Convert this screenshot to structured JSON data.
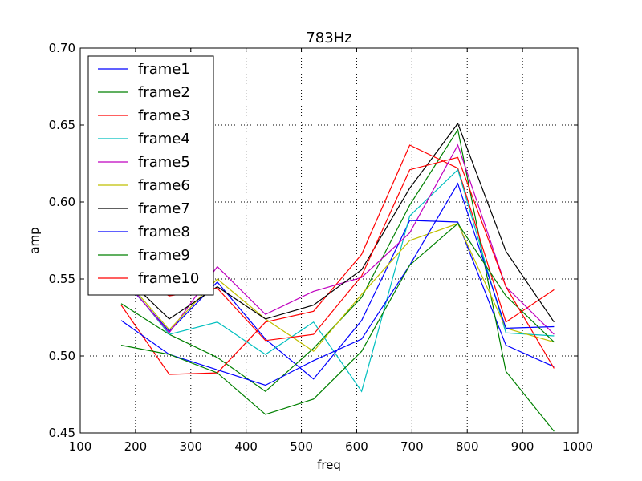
{
  "chart_data": {
    "type": "line",
    "title": "783Hz",
    "xlabel": "freq",
    "ylabel": "amp",
    "xlim": [
      100,
      1000
    ],
    "ylim": [
      0.45,
      0.7
    ],
    "x_ticks": [
      "100",
      "200",
      "300",
      "400",
      "500",
      "600",
      "700",
      "800",
      "900",
      "1000"
    ],
    "y_ticks": [
      "0.45",
      "0.50",
      "0.55",
      "0.60",
      "0.65",
      "0.70"
    ],
    "grid": true,
    "legend_position": "top-left",
    "x": [
      174,
      261,
      348,
      435,
      522,
      609,
      696,
      783,
      870,
      957
    ],
    "series": [
      {
        "name": "frame1",
        "color": "#0000ff",
        "values": [
          0.551,
          0.516,
          0.548,
          0.511,
          0.485,
          0.523,
          0.588,
          0.587,
          0.507,
          0.493
        ]
      },
      {
        "name": "frame2",
        "color": "#008000",
        "values": [
          0.534,
          0.514,
          0.499,
          0.477,
          0.505,
          0.538,
          0.598,
          0.647,
          0.49,
          0.451
        ]
      },
      {
        "name": "frame3",
        "color": "#ff0000",
        "values": [
          0.533,
          0.488,
          0.489,
          0.522,
          0.529,
          0.566,
          0.637,
          0.622,
          0.522,
          0.543
        ]
      },
      {
        "name": "frame4",
        "color": "#00bfbf",
        "values": [
          0.553,
          0.514,
          0.522,
          0.501,
          0.522,
          0.477,
          0.591,
          0.621,
          0.515,
          0.513
        ]
      },
      {
        "name": "frame5",
        "color": "#bf00bf",
        "values": [
          0.552,
          0.515,
          0.558,
          0.527,
          0.542,
          0.551,
          0.58,
          0.637,
          0.545,
          0.514
        ]
      },
      {
        "name": "frame6",
        "color": "#bfbf00",
        "values": [
          0.553,
          0.517,
          0.55,
          0.524,
          0.503,
          0.54,
          0.575,
          0.586,
          0.518,
          0.509
        ]
      },
      {
        "name": "frame7",
        "color": "#000000",
        "values": [
          0.554,
          0.524,
          0.545,
          0.524,
          0.533,
          0.556,
          0.609,
          0.651,
          0.568,
          0.522
        ]
      },
      {
        "name": "frame8",
        "color": "#0000ff",
        "values": [
          0.523,
          0.501,
          0.491,
          0.481,
          0.497,
          0.511,
          0.559,
          0.612,
          0.518,
          0.519
        ]
      },
      {
        "name": "frame9",
        "color": "#008000",
        "values": [
          0.507,
          0.501,
          0.489,
          0.462,
          0.472,
          0.503,
          0.559,
          0.586,
          0.539,
          0.509
        ]
      },
      {
        "name": "frame10",
        "color": "#ff0000",
        "values": [
          0.555,
          0.539,
          0.544,
          0.51,
          0.514,
          0.552,
          0.621,
          0.629,
          0.545,
          0.492
        ]
      }
    ]
  }
}
